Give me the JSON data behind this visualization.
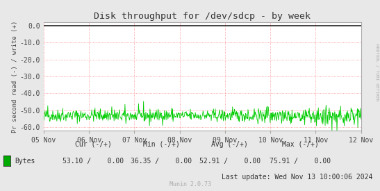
{
  "title": "Disk throughput for /dev/sdcp - by week",
  "ylabel": "Pr second read (-) / write (+)",
  "background_color": "#e8e8e8",
  "plot_bg_color": "#ffffff",
  "grid_color": "#ff8888",
  "line_color": "#00cc00",
  "ylim": [
    -62,
    2
  ],
  "yticks": [
    0.0,
    -10.0,
    -20.0,
    -30.0,
    -40.0,
    -50.0,
    -60.0
  ],
  "x_labels": [
    "05 Nov",
    "06 Nov",
    "07 Nov",
    "08 Nov",
    "09 Nov",
    "10 Nov",
    "11 Nov",
    "12 Nov"
  ],
  "legend_label": "Bytes",
  "legend_color": "#00aa00",
  "cur_minus": "53.10",
  "cur_plus": "0.00",
  "min_minus": "36.35",
  "min_plus": "0.00",
  "avg_minus": "52.91",
  "avg_plus": "0.00",
  "max_minus": "75.91",
  "max_plus": "0.00",
  "last_update": "Last update: Wed Nov 13 10:00:06 2024",
  "munin_text": "Munin 2.0.73",
  "rrdtool_text": "RRDTOOL / TOBI OETIKER",
  "mean_value": -53.0,
  "noise_amplitude": 1.8,
  "spike_amplitude": 5.0,
  "n_points": 700
}
